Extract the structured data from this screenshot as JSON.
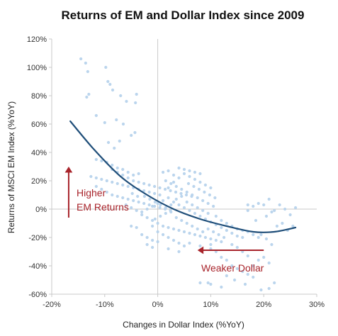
{
  "chart_data": {
    "type": "scatter",
    "title": "Returns of EM and Dollar Index since 2009",
    "xlabel": "Changes in Dollar Index (%YoY)",
    "ylabel": "Returns of MSCI EM Index (%YoY)",
    "xlim": [
      -20,
      30
    ],
    "ylim": [
      -60,
      120
    ],
    "x_ticks": [
      -20,
      -10,
      0,
      10,
      20,
      30
    ],
    "y_ticks": [
      -60,
      -40,
      -20,
      0,
      20,
      40,
      60,
      80,
      100,
      120
    ],
    "x_tick_labels": [
      "-20%",
      "-10%",
      "0%",
      "10%",
      "20%",
      "30%"
    ],
    "y_tick_labels": [
      "-60%",
      "-40%",
      "-20%",
      "0%",
      "20%",
      "40%",
      "60%",
      "80%",
      "100%",
      "120%"
    ],
    "grid": false,
    "zero_lines": true,
    "colors": {
      "points": "#b7d3ec",
      "trend": "#1f4e79",
      "annotation": "#a8242b",
      "axis": "#c8c8c8"
    },
    "series": [
      {
        "type": "scatter",
        "points": [
          [
            -14.5,
            106
          ],
          [
            -13.6,
            103
          ],
          [
            -13.2,
            97
          ],
          [
            -9.8,
            100
          ],
          [
            -9.4,
            90
          ],
          [
            -9.0,
            88
          ],
          [
            -8.5,
            84
          ],
          [
            -7.0,
            80
          ],
          [
            -5.9,
            76
          ],
          [
            -4.0,
            81
          ],
          [
            -4.2,
            75
          ],
          [
            -13.0,
            81
          ],
          [
            -13.4,
            79
          ],
          [
            -11.6,
            66
          ],
          [
            -10.0,
            61
          ],
          [
            -7.8,
            63
          ],
          [
            -6.5,
            60
          ],
          [
            -5.0,
            52
          ],
          [
            -4.3,
            54
          ],
          [
            -9.3,
            47
          ],
          [
            -8.2,
            43
          ],
          [
            -7.2,
            48
          ],
          [
            -11.6,
            35
          ],
          [
            -10.6,
            34
          ],
          [
            -9.6,
            33
          ],
          [
            -8.6,
            31
          ],
          [
            -7.6,
            29
          ],
          [
            -6.6,
            28
          ],
          [
            -5.6,
            26
          ],
          [
            -4.6,
            24
          ],
          [
            -3.6,
            25
          ],
          [
            -12.6,
            23
          ],
          [
            -11.6,
            22
          ],
          [
            -10.6,
            21
          ],
          [
            -9.6,
            20
          ],
          [
            -8.6,
            19
          ],
          [
            -7.6,
            18
          ],
          [
            -6.6,
            17
          ],
          [
            -5.6,
            16
          ],
          [
            -4.6,
            15
          ],
          [
            -3.6,
            14
          ],
          [
            -2.6,
            13
          ],
          [
            -1.6,
            12
          ],
          [
            -0.6,
            11
          ],
          [
            0.4,
            10
          ],
          [
            -11.6,
            16
          ],
          [
            -10.6,
            14
          ],
          [
            -9.6,
            12
          ],
          [
            -8.6,
            10
          ],
          [
            -7.6,
            9
          ],
          [
            -6.6,
            8
          ],
          [
            -5.6,
            7
          ],
          [
            -4.6,
            6
          ],
          [
            -3.6,
            5
          ],
          [
            -2.6,
            4
          ],
          [
            -1.6,
            3
          ],
          [
            -0.6,
            2
          ],
          [
            0.4,
            1
          ],
          [
            1.4,
            0
          ],
          [
            2.4,
            -1
          ],
          [
            -8.6,
            28
          ],
          [
            -7.6,
            26
          ],
          [
            -6.6,
            24
          ],
          [
            -5.6,
            22
          ],
          [
            -4.6,
            20
          ],
          [
            -3.6,
            19
          ],
          [
            -2.6,
            18
          ],
          [
            -1.6,
            17
          ],
          [
            -0.6,
            16
          ],
          [
            0.4,
            15
          ],
          [
            1.4,
            14
          ],
          [
            2.4,
            13
          ],
          [
            3.4,
            12
          ],
          [
            4.4,
            11
          ],
          [
            5.4,
            10
          ],
          [
            6.4,
            9
          ],
          [
            1.0,
            26
          ],
          [
            2.0,
            27
          ],
          [
            3.0,
            24
          ],
          [
            4.0,
            22
          ],
          [
            5.0,
            25
          ],
          [
            6.0,
            23
          ],
          [
            7.0,
            21
          ],
          [
            8.0,
            19
          ],
          [
            9.0,
            17
          ],
          [
            10.0,
            15
          ],
          [
            1.5,
            20
          ],
          [
            2.5,
            18
          ],
          [
            3.5,
            16
          ],
          [
            4.5,
            14
          ],
          [
            5.5,
            12
          ],
          [
            6.5,
            10
          ],
          [
            7.5,
            8
          ],
          [
            8.5,
            6
          ],
          [
            9.5,
            4
          ],
          [
            10.5,
            2
          ],
          [
            -3.0,
            -4
          ],
          [
            -2.0,
            -6
          ],
          [
            -1.0,
            -8
          ],
          [
            0.0,
            -10
          ],
          [
            1.0,
            -12
          ],
          [
            2.0,
            -13
          ],
          [
            3.0,
            -14
          ],
          [
            4.0,
            -15
          ],
          [
            5.0,
            -16
          ],
          [
            6.0,
            -17
          ],
          [
            7.0,
            -18
          ],
          [
            8.0,
            -19
          ],
          [
            9.0,
            -20
          ],
          [
            10.0,
            -21
          ],
          [
            11.0,
            -22
          ],
          [
            -3.0,
            -18
          ],
          [
            -2.0,
            -20
          ],
          [
            -1.0,
            -22
          ],
          [
            0.0,
            -16
          ],
          [
            1.0,
            -18
          ],
          [
            2.0,
            -20
          ],
          [
            3.0,
            -22
          ],
          [
            4.0,
            -24
          ],
          [
            5.0,
            -26
          ],
          [
            -5.0,
            -12
          ],
          [
            -4.0,
            -13
          ],
          [
            -2.0,
            0
          ],
          [
            -1.0,
            2
          ],
          [
            0.0,
            4
          ],
          [
            1.0,
            6
          ],
          [
            2.0,
            8
          ],
          [
            3.0,
            5
          ],
          [
            4.0,
            3
          ],
          [
            5.0,
            1
          ],
          [
            6.0,
            -1
          ],
          [
            7.0,
            -3
          ],
          [
            8.0,
            -5
          ],
          [
            9.0,
            -7
          ],
          [
            10.0,
            -9
          ],
          [
            11.0,
            -11
          ],
          [
            12.0,
            -13
          ],
          [
            13.0,
            -15
          ],
          [
            14.0,
            -17
          ],
          [
            15.0,
            -19
          ],
          [
            16.0,
            -20
          ],
          [
            11.0,
            -5
          ],
          [
            12.0,
            -8
          ],
          [
            13.0,
            -10
          ],
          [
            14.0,
            -12
          ],
          [
            15.0,
            -14
          ],
          [
            16.0,
            -15
          ],
          [
            17.0,
            -16
          ],
          [
            18.0,
            -18
          ],
          [
            19.0,
            -20
          ],
          [
            10.0,
            -28
          ],
          [
            11.0,
            -30
          ],
          [
            12.0,
            -34
          ],
          [
            13.0,
            -36
          ],
          [
            14.0,
            -40
          ],
          [
            15.0,
            -42
          ],
          [
            16.0,
            -44
          ],
          [
            17.0,
            -46
          ],
          [
            18.0,
            -40
          ],
          [
            19.0,
            -36
          ],
          [
            20.0,
            -34
          ],
          [
            21.0,
            -38
          ],
          [
            22.0,
            -52
          ],
          [
            21.0,
            -56
          ],
          [
            19.5,
            -57
          ],
          [
            18.0,
            -48
          ],
          [
            16.5,
            -53
          ],
          [
            14.5,
            -50
          ],
          [
            13.0,
            -47
          ],
          [
            10.0,
            -53
          ],
          [
            9.5,
            -52
          ],
          [
            8.0,
            -52
          ],
          [
            12.0,
            -55
          ],
          [
            17.0,
            3
          ],
          [
            17.0,
            -1
          ],
          [
            18.0,
            2
          ],
          [
            19.0,
            4
          ],
          [
            20.0,
            3
          ],
          [
            21.0,
            7
          ],
          [
            22.0,
            -1
          ],
          [
            23.0,
            3
          ],
          [
            24.0,
            0
          ],
          [
            25.0,
            -4
          ],
          [
            26.0,
            1
          ],
          [
            18.5,
            -8
          ],
          [
            20.5,
            -5
          ],
          [
            21.5,
            -2
          ],
          [
            22.5,
            -12
          ],
          [
            23.5,
            -10
          ],
          [
            24.5,
            -15
          ],
          [
            25.5,
            -12
          ],
          [
            19.5,
            -18
          ],
          [
            20.5,
            -21
          ],
          [
            21.5,
            -25
          ],
          [
            14.0,
            -25
          ],
          [
            15.0,
            -27
          ],
          [
            16.0,
            -30
          ],
          [
            17.0,
            -33
          ],
          [
            -1.0,
            -12
          ],
          [
            -0.5,
            -7
          ],
          [
            0.5,
            -5
          ],
          [
            1.5,
            -3
          ],
          [
            2.5,
            -2
          ],
          [
            3.5,
            -6
          ],
          [
            4.5,
            -8
          ],
          [
            5.5,
            -10
          ],
          [
            6.5,
            -12
          ],
          [
            7.5,
            -14
          ],
          [
            8.5,
            -16
          ],
          [
            9.5,
            -14
          ],
          [
            10.5,
            -16
          ],
          [
            11.5,
            -18
          ],
          [
            12.5,
            -20
          ],
          [
            -2.5,
            9
          ],
          [
            -1.5,
            7
          ],
          [
            -0.5,
            5
          ],
          [
            0.5,
            3
          ],
          [
            1.5,
            1
          ],
          [
            2.5,
            3
          ],
          [
            3.5,
            7
          ],
          [
            4.5,
            9
          ],
          [
            5.5,
            5
          ],
          [
            6.5,
            3
          ],
          [
            7.5,
            1
          ],
          [
            8.5,
            -1
          ],
          [
            9.5,
            -3
          ],
          [
            -6.0,
            3
          ],
          [
            -5.0,
            1
          ],
          [
            -4.0,
            -1
          ],
          [
            -3.0,
            -2
          ],
          [
            -4.8,
            11
          ],
          [
            -3.8,
            9
          ],
          [
            5.8,
            18
          ],
          [
            6.8,
            16
          ],
          [
            7.8,
            14
          ],
          [
            8.8,
            12
          ],
          [
            9.8,
            10
          ],
          [
            10.8,
            8
          ],
          [
            4.0,
            29
          ],
          [
            5.0,
            28
          ],
          [
            6.0,
            27
          ],
          [
            7.0,
            26
          ],
          [
            8.0,
            25
          ],
          [
            3.0,
            19
          ],
          [
            2.0,
            15
          ],
          [
            -2.0,
            -25
          ],
          [
            -1.0,
            -27
          ],
          [
            0.0,
            -23
          ],
          [
            2.0,
            -28
          ],
          [
            4.0,
            -30
          ],
          [
            6.0,
            -24
          ],
          [
            8.0,
            -26
          ],
          [
            10.0,
            -25
          ],
          [
            12.0,
            -23
          ]
        ]
      },
      {
        "type": "line",
        "points": [
          [
            -16.5,
            62
          ],
          [
            -12.0,
            42
          ],
          [
            -7.0,
            23
          ],
          [
            -2.0,
            10
          ],
          [
            3.0,
            0
          ],
          [
            8.0,
            -7
          ],
          [
            13.0,
            -12
          ],
          [
            18.0,
            -16
          ],
          [
            22.0,
            -16
          ],
          [
            26.0,
            -13
          ]
        ]
      }
    ],
    "annotations": [
      {
        "text_lines": [
          "Higher",
          "EM Returns"
        ],
        "arrow_from": [
          -16.8,
          -6
        ],
        "arrow_to": [
          -16.8,
          30
        ]
      },
      {
        "text_lines": [
          "Weaker Dollar"
        ],
        "arrow_from": [
          20.0,
          -29
        ],
        "arrow_to": [
          7.5,
          -29
        ]
      }
    ]
  }
}
